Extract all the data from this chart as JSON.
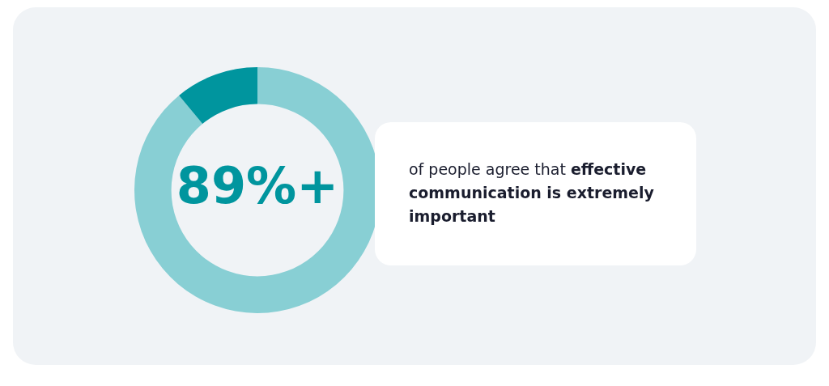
{
  "chart_data": {
    "type": "donut",
    "categories": [
      null,
      null
    ],
    "values": [
      89,
      11
    ],
    "colors": [
      "#88cfd4",
      "#00959e"
    ],
    "value_labels": [
      "89%+",
      null
    ],
    "legend": false,
    "annotations": [
      "of people agree that",
      "effective communication is extremely important"
    ]
  }
}
